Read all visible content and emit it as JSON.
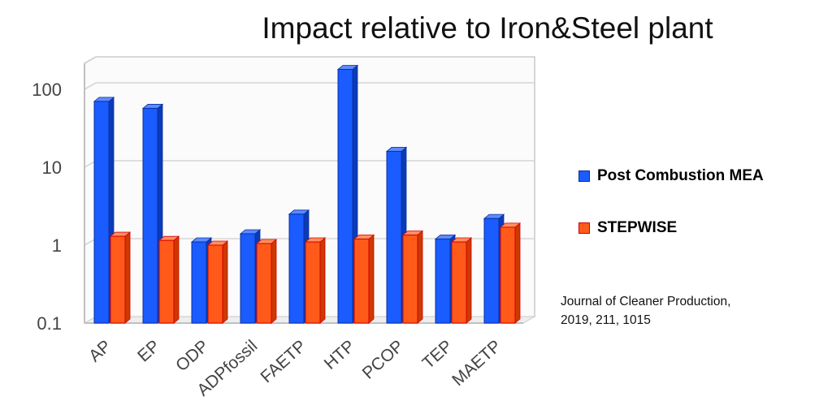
{
  "chart_data": {
    "type": "bar",
    "title": "Impact relative to Iron&Steel plant",
    "categories": [
      "AP",
      "EP",
      "ODP",
      "ADPfossil",
      "FAETP",
      "HTP",
      "PCOP",
      "TEP",
      "MAETP"
    ],
    "series": [
      {
        "name": "Post Combustion MEA",
        "values": [
          70,
          57,
          1.1,
          1.4,
          2.5,
          180,
          16,
          1.2,
          2.2
        ]
      },
      {
        "name": "STEPWISE",
        "values": [
          1.3,
          1.15,
          1.0,
          1.05,
          1.1,
          1.2,
          1.35,
          1.1,
          1.7
        ]
      }
    ],
    "y_scale": "log",
    "ylim": [
      0.1,
      300
    ],
    "yticks": [
      "100",
      "10",
      "1",
      "0.1"
    ],
    "grid": true,
    "legend_position": "right",
    "colors": {
      "Post Combustion MEA": "#1a5cff",
      "STEPWISE": "#ff5a1a"
    }
  },
  "citation": {
    "line1": "Journal of Cleaner Production,",
    "line2": "2019, 211, 1015"
  }
}
